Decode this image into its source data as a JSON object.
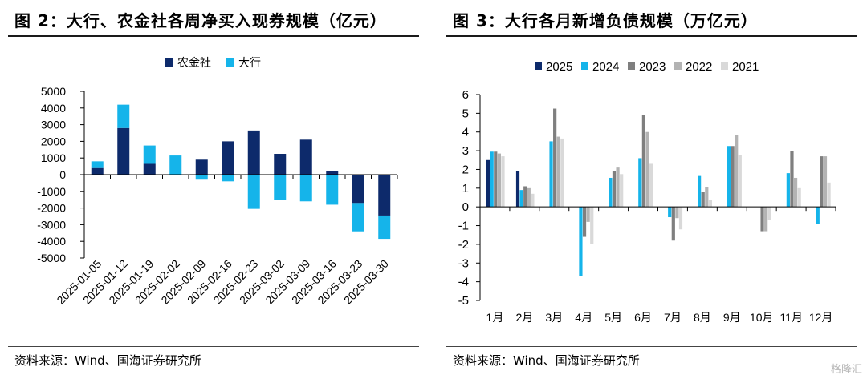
{
  "watermark": "格隆汇",
  "chart_data": [
    {
      "type": "bar",
      "stacked": true,
      "title": "图 2：大行、农金社各周净买入现券规模（亿元）",
      "source": "资料来源：Wind、国海证券研究所",
      "categories": [
        "2025-01-05",
        "2025-01-12",
        "2025-01-19",
        "2025-02-02",
        "2025-02-09",
        "2025-02-16",
        "2025-02-23",
        "2025-03-02",
        "2025-03-09",
        "2025-03-16",
        "2025-03-23",
        "2025-03-30"
      ],
      "series": [
        {
          "name": "农金社",
          "color": "#0d2a6b",
          "values": [
            400,
            2800,
            650,
            0,
            900,
            2000,
            2650,
            1250,
            2100,
            200,
            -1700,
            -2450
          ]
        },
        {
          "name": "大行",
          "color": "#15b4ea",
          "values": [
            400,
            1400,
            1100,
            1150,
            -300,
            -400,
            -2050,
            -1500,
            -1600,
            -1800,
            -1700,
            -1400
          ]
        }
      ],
      "ylim": [
        -5000,
        5000
      ],
      "yticks": [
        -5000,
        -4000,
        -3000,
        -2000,
        -1000,
        0,
        1000,
        2000,
        3000,
        4000,
        5000
      ],
      "legend": "top-center"
    },
    {
      "type": "bar",
      "stacked": false,
      "title": "图 3：大行各月新增负债规模（万亿元）",
      "source": "资料来源：Wind、国海证券研究所",
      "categories": [
        "1月",
        "2月",
        "3月",
        "4月",
        "5月",
        "6月",
        "7月",
        "8月",
        "9月",
        "10月",
        "11月",
        "12月"
      ],
      "series": [
        {
          "name": "2025",
          "color": "#0d2a6b",
          "values": [
            2.5,
            1.9,
            null,
            null,
            null,
            null,
            null,
            null,
            null,
            null,
            null,
            null
          ]
        },
        {
          "name": "2024",
          "color": "#15b4ea",
          "values": [
            2.95,
            0.9,
            3.5,
            -3.7,
            1.55,
            2.6,
            -0.55,
            1.65,
            3.25,
            0,
            1.8,
            -0.9
          ]
        },
        {
          "name": "2023",
          "color": "#7f7f7f",
          "values": [
            2.95,
            1.1,
            5.25,
            -1.6,
            1.9,
            4.9,
            -1.8,
            0.8,
            3.25,
            -1.3,
            3.0,
            2.7
          ]
        },
        {
          "name": "2022",
          "color": "#b3b3b3",
          "values": [
            2.85,
            1.0,
            3.75,
            -0.8,
            2.1,
            4.0,
            -0.6,
            1.05,
            3.85,
            -1.3,
            1.55,
            2.7
          ]
        },
        {
          "name": "2021",
          "color": "#d9d9d9",
          "values": [
            2.7,
            0.7,
            3.65,
            -2.0,
            1.75,
            2.3,
            -1.2,
            0.35,
            2.75,
            -0.7,
            1.0,
            1.3
          ]
        }
      ],
      "ylim": [
        -5,
        6
      ],
      "yticks": [
        -5,
        -4,
        -3,
        -2,
        -1,
        0,
        1,
        2,
        3,
        4,
        5,
        6
      ],
      "legend": "top-center"
    }
  ]
}
